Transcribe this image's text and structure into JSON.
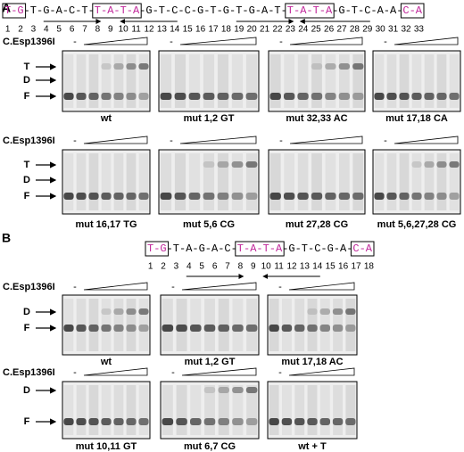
{
  "panels": [
    {
      "label": "A",
      "sequence": [
        {
          "text": "T-G",
          "boxed": true
        },
        {
          "text": "-T-G-A-C-T-",
          "boxed": false
        },
        {
          "text": "T-A-T-A",
          "boxed": true
        },
        {
          "text": "-G-T-C-C-G-T-G-T-G-A-T-",
          "boxed": false
        },
        {
          "text": "T-A-T-A",
          "boxed": true
        },
        {
          "text": "-G-T-C-A-A-",
          "boxed": false
        },
        {
          "text": "C-A",
          "boxed": true
        }
      ],
      "positions": [
        1,
        2,
        3,
        4,
        5,
        6,
        7,
        8,
        9,
        10,
        11,
        12,
        13,
        14,
        15,
        16,
        17,
        18,
        19,
        20,
        21,
        22,
        23,
        24,
        25,
        26,
        27,
        28,
        29,
        30,
        31,
        32,
        33
      ],
      "rows": [
        {
          "protein": "C.Esp1396I",
          "minus": "-",
          "band_labels": [
            "T",
            "D",
            "F"
          ],
          "gels": [
            "wt",
            "mut 1,2 GT",
            "mut 32,33 AC",
            "mut 17,18 CA"
          ]
        },
        {
          "protein": "C.Esp1396I",
          "minus": "-",
          "band_labels": [
            "T",
            "D",
            "F"
          ],
          "gels": [
            "mut 16,17 TG",
            "mut 5,6 CG",
            "mut 27,28 CG",
            "mut 5,6,27,28 CG"
          ]
        }
      ]
    },
    {
      "label": "B",
      "sequence": [
        {
          "text": "T-G",
          "boxed": true
        },
        {
          "text": "-T-A-G-A-C-",
          "boxed": false
        },
        {
          "text": "T-A-T-A",
          "boxed": true
        },
        {
          "text": "-G-T-C-G-A-",
          "boxed": false
        },
        {
          "text": "C-A",
          "boxed": true
        }
      ],
      "positions": [
        1,
        2,
        3,
        4,
        5,
        6,
        7,
        8,
        9,
        10,
        11,
        12,
        13,
        14,
        15,
        16,
        17,
        18
      ],
      "rows": [
        {
          "protein": "C.Esp1396I",
          "minus": "-",
          "band_labels": [
            "D",
            "F"
          ],
          "gels": [
            "wt",
            "mut 1,2 GT",
            "mut 17,18 AC"
          ]
        },
        {
          "protein": "C.Esp1396I",
          "minus": "-",
          "band_labels": [
            "D",
            "F"
          ],
          "gels": [
            "mut 10,11 GT",
            "mut 6,7 CG",
            "wt + T"
          ]
        }
      ]
    }
  ]
}
